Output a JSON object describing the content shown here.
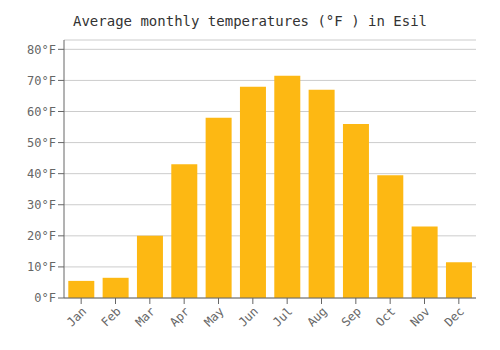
{
  "chart_data": {
    "type": "bar",
    "title": "Average monthly temperatures (°F ) in Esil",
    "categories": [
      "Jan",
      "Feb",
      "Mar",
      "Apr",
      "May",
      "Jun",
      "Jul",
      "Aug",
      "Sep",
      "Oct",
      "Nov",
      "Dec"
    ],
    "values": [
      5.5,
      6.5,
      20.0,
      43.0,
      58.0,
      68.0,
      71.5,
      67.0,
      56.0,
      39.5,
      23.0,
      11.5
    ],
    "color": "#FDB813",
    "ylim": [
      0,
      83
    ],
    "yticks": [
      {
        "value": 0,
        "label": "0°F"
      },
      {
        "value": 10,
        "label": "10°F"
      },
      {
        "value": 20,
        "label": "20°F"
      },
      {
        "value": 30,
        "label": "30°F"
      },
      {
        "value": 40,
        "label": "40°F"
      },
      {
        "value": 50,
        "label": "50°F"
      },
      {
        "value": 60,
        "label": "60°F"
      },
      {
        "value": 70,
        "label": "70°F"
      },
      {
        "value": 80,
        "label": "80°F"
      }
    ],
    "grid": true
  }
}
